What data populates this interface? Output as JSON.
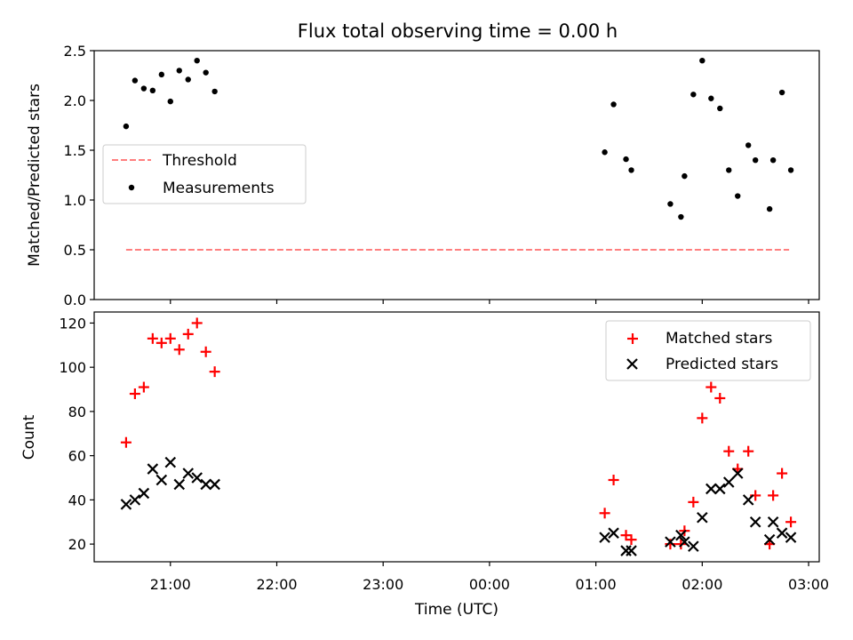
{
  "title": "Flux total observing time = 0.00 h",
  "chart_data": [
    {
      "type": "scatter",
      "panel": "top",
      "ylabel": "Matched/Predicted stars",
      "xlabel": "",
      "xlim": [
        "2024-01-01T20:17:00",
        "2024-01-02T03:06:00"
      ],
      "ylim": [
        0,
        2.5
      ],
      "yticks": [
        0.0,
        0.5,
        1.0,
        1.5,
        2.0,
        2.5
      ],
      "ytick_labels": [
        "0.0",
        "0.5",
        "1.0",
        "1.5",
        "2.0",
        "2.5"
      ],
      "legend": {
        "position": "center-left"
      },
      "threshold": {
        "name": "Threshold",
        "value": 0.5,
        "x_start": "2024-01-01T20:35:00",
        "x_end": "2024-01-02T02:49:00",
        "color": "#ff7f7f"
      },
      "series": [
        {
          "name": "Measurements",
          "color": "#000000",
          "marker": "dot",
          "points": [
            [
              "2024-01-01T20:35:00",
              1.74
            ],
            [
              "2024-01-01T20:40:00",
              2.2
            ],
            [
              "2024-01-01T20:45:00",
              2.12
            ],
            [
              "2024-01-01T20:50:00",
              2.1
            ],
            [
              "2024-01-01T20:55:00",
              2.26
            ],
            [
              "2024-01-01T21:00:00",
              1.99
            ],
            [
              "2024-01-01T21:05:00",
              2.3
            ],
            [
              "2024-01-01T21:10:00",
              2.21
            ],
            [
              "2024-01-01T21:15:00",
              2.4
            ],
            [
              "2024-01-01T21:20:00",
              2.28
            ],
            [
              "2024-01-01T21:25:00",
              2.09
            ],
            [
              "2024-01-02T01:05:00",
              1.48
            ],
            [
              "2024-01-02T01:10:00",
              1.96
            ],
            [
              "2024-01-02T01:17:00",
              1.41
            ],
            [
              "2024-01-02T01:20:00",
              1.3
            ],
            [
              "2024-01-02T01:42:00",
              0.96
            ],
            [
              "2024-01-02T01:48:00",
              0.83
            ],
            [
              "2024-01-02T01:50:00",
              1.24
            ],
            [
              "2024-01-02T01:55:00",
              2.06
            ],
            [
              "2024-01-02T02:00:00",
              2.4
            ],
            [
              "2024-01-02T02:05:00",
              2.02
            ],
            [
              "2024-01-02T02:10:00",
              1.92
            ],
            [
              "2024-01-02T02:15:00",
              1.3
            ],
            [
              "2024-01-02T02:20:00",
              1.04
            ],
            [
              "2024-01-02T02:26:00",
              1.55
            ],
            [
              "2024-01-02T02:30:00",
              1.4
            ],
            [
              "2024-01-02T02:38:00",
              0.91
            ],
            [
              "2024-01-02T02:40:00",
              1.4
            ],
            [
              "2024-01-02T02:45:00",
              2.08
            ],
            [
              "2024-01-02T02:50:00",
              1.3
            ]
          ]
        }
      ]
    },
    {
      "type": "scatter",
      "panel": "bottom",
      "ylabel": "Count",
      "xlabel": "Time (UTC)",
      "xlim": [
        "2024-01-01T20:17:00",
        "2024-01-02T03:06:00"
      ],
      "ylim": [
        12,
        125
      ],
      "yticks": [
        20,
        40,
        60,
        80,
        100,
        120
      ],
      "ytick_labels": [
        "20",
        "40",
        "60",
        "80",
        "100",
        "120"
      ],
      "xticks": [
        "2024-01-01T21:00:00",
        "2024-01-01T22:00:00",
        "2024-01-01T23:00:00",
        "2024-01-02T00:00:00",
        "2024-01-02T01:00:00",
        "2024-01-02T02:00:00",
        "2024-01-02T03:00:00"
      ],
      "xtick_labels": [
        "21:00",
        "22:00",
        "23:00",
        "00:00",
        "01:00",
        "02:00",
        "03:00"
      ],
      "legend": {
        "position": "top-right"
      },
      "series": [
        {
          "name": "Matched stars",
          "color": "#ff0000",
          "marker": "plus",
          "points": [
            [
              "2024-01-01T20:35:00",
              66
            ],
            [
              "2024-01-01T20:40:00",
              88
            ],
            [
              "2024-01-01T20:45:00",
              91
            ],
            [
              "2024-01-01T20:50:00",
              113
            ],
            [
              "2024-01-01T20:55:00",
              111
            ],
            [
              "2024-01-01T21:00:00",
              113
            ],
            [
              "2024-01-01T21:05:00",
              108
            ],
            [
              "2024-01-01T21:10:00",
              115
            ],
            [
              "2024-01-01T21:15:00",
              120
            ],
            [
              "2024-01-01T21:20:00",
              107
            ],
            [
              "2024-01-01T21:25:00",
              98
            ],
            [
              "2024-01-02T01:05:00",
              34
            ],
            [
              "2024-01-02T01:10:00",
              49
            ],
            [
              "2024-01-02T01:17:00",
              24
            ],
            [
              "2024-01-02T01:20:00",
              22
            ],
            [
              "2024-01-02T01:42:00",
              20
            ],
            [
              "2024-01-02T01:48:00",
              20
            ],
            [
              "2024-01-02T01:50:00",
              26
            ],
            [
              "2024-01-02T01:55:00",
              39
            ],
            [
              "2024-01-02T02:00:00",
              77
            ],
            [
              "2024-01-02T02:05:00",
              91
            ],
            [
              "2024-01-02T02:10:00",
              86
            ],
            [
              "2024-01-02T02:15:00",
              62
            ],
            [
              "2024-01-02T02:20:00",
              54
            ],
            [
              "2024-01-02T02:26:00",
              62
            ],
            [
              "2024-01-02T02:30:00",
              42
            ],
            [
              "2024-01-02T02:38:00",
              20
            ],
            [
              "2024-01-02T02:40:00",
              42
            ],
            [
              "2024-01-02T02:45:00",
              52
            ],
            [
              "2024-01-02T02:50:00",
              30
            ]
          ]
        },
        {
          "name": "Predicted stars",
          "color": "#000000",
          "marker": "x",
          "points": [
            [
              "2024-01-01T20:35:00",
              38
            ],
            [
              "2024-01-01T20:40:00",
              40
            ],
            [
              "2024-01-01T20:45:00",
              43
            ],
            [
              "2024-01-01T20:50:00",
              54
            ],
            [
              "2024-01-01T20:55:00",
              49
            ],
            [
              "2024-01-01T21:00:00",
              57
            ],
            [
              "2024-01-01T21:05:00",
              47
            ],
            [
              "2024-01-01T21:10:00",
              52
            ],
            [
              "2024-01-01T21:15:00",
              50
            ],
            [
              "2024-01-01T21:20:00",
              47
            ],
            [
              "2024-01-01T21:25:00",
              47
            ],
            [
              "2024-01-02T01:05:00",
              23
            ],
            [
              "2024-01-02T01:10:00",
              25
            ],
            [
              "2024-01-02T01:17:00",
              17
            ],
            [
              "2024-01-02T01:20:00",
              17
            ],
            [
              "2024-01-02T01:42:00",
              21
            ],
            [
              "2024-01-02T01:48:00",
              24
            ],
            [
              "2024-01-02T01:50:00",
              21
            ],
            [
              "2024-01-02T01:55:00",
              19
            ],
            [
              "2024-01-02T02:00:00",
              32
            ],
            [
              "2024-01-02T02:05:00",
              45
            ],
            [
              "2024-01-02T02:10:00",
              45
            ],
            [
              "2024-01-02T02:15:00",
              48
            ],
            [
              "2024-01-02T02:20:00",
              52
            ],
            [
              "2024-01-02T02:26:00",
              40
            ],
            [
              "2024-01-02T02:30:00",
              30
            ],
            [
              "2024-01-02T02:38:00",
              22
            ],
            [
              "2024-01-02T02:40:00",
              30
            ],
            [
              "2024-01-02T02:45:00",
              25
            ],
            [
              "2024-01-02T02:50:00",
              23
            ]
          ]
        }
      ]
    }
  ]
}
